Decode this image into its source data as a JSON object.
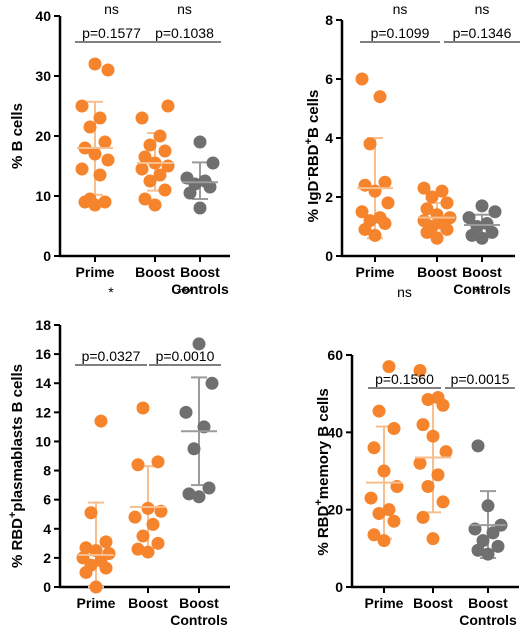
{
  "colors": {
    "prime": "#F5842C",
    "boost": "#F5842C",
    "controls": "#6F6F6F",
    "prime_bar": "#F8BE8E",
    "boost_bar": "#F8BE8E",
    "controls_bar": "#9B9B9B",
    "axis": "#000000"
  },
  "chart_data": [
    {
      "type": "scatter",
      "ylabel": "% B cells",
      "ylim": [
        0,
        40
      ],
      "yticks": [
        "0",
        "10",
        "20",
        "30",
        "40"
      ],
      "categories": [
        "Prime",
        "Boost",
        "Boost Controls"
      ],
      "series": [
        {
          "values": [
            8.5,
            9,
            9,
            9.5,
            13.5,
            14.5,
            16,
            17,
            18,
            19,
            21.5,
            23,
            25,
            31,
            32
          ],
          "mean": 18,
          "sd_low": 10.2,
          "sd_high": 25.7
        },
        {
          "values": [
            8.5,
            9.5,
            11,
            12.5,
            13.5,
            14.5,
            15,
            15.5,
            16.5,
            17.5,
            18.5,
            20,
            23,
            25
          ],
          "mean": 15.5,
          "sd_low": 10.9,
          "sd_high": 20.5
        },
        {
          "values": [
            8,
            10.5,
            11.5,
            12,
            12.5,
            13,
            15.5,
            19
          ],
          "mean": 12.3,
          "sd_low": 9.5,
          "sd_high": 15.6
        }
      ],
      "comparisons": [
        {
          "sig": "ns",
          "p": "p=0.1577"
        },
        {
          "sig": "ns",
          "p": "p=0.1038"
        }
      ]
    },
    {
      "type": "scatter",
      "ylabel_parts": [
        "% IgD",
        "-",
        "RBD",
        "+",
        "B cells"
      ],
      "ylim": [
        0,
        8
      ],
      "yticks": [
        "0",
        "2",
        "4",
        "6",
        "8"
      ],
      "categories": [
        "Prime",
        "Boost",
        "Boost Controls"
      ],
      "series": [
        {
          "values": [
            0.7,
            0.9,
            1.1,
            1.2,
            1.3,
            1.5,
            1.8,
            2.2,
            2.4,
            2.5,
            3.8,
            5.4,
            6.0
          ],
          "mean": 2.3,
          "sd_low": 0.6,
          "sd_high": 4.0
        },
        {
          "values": [
            0.6,
            0.8,
            0.9,
            1.0,
            1.1,
            1.2,
            1.3,
            1.4,
            1.6,
            1.8,
            2.0,
            2.2,
            2.3
          ],
          "mean": 1.3,
          "sd_low": 0.8,
          "sd_high": 1.8
        },
        {
          "values": [
            0.6,
            0.7,
            0.8,
            1.0,
            1.1,
            1.3,
            1.5,
            1.7
          ],
          "mean": 1.05,
          "sd_low": 0.7,
          "sd_high": 1.4
        }
      ],
      "comparisons": [
        {
          "sig": "ns",
          "p": "p=0.1099"
        },
        {
          "sig": "ns",
          "p": "p=0.1346"
        }
      ]
    },
    {
      "type": "scatter",
      "ylabel_parts": [
        "% RBD",
        "+",
        "plasmablasts B cells"
      ],
      "ylim": [
        0,
        18
      ],
      "yticks": [
        "0",
        "2",
        "4",
        "6",
        "8",
        "10",
        "12",
        "14",
        "16",
        "18"
      ],
      "categories": [
        "Prime",
        "Boost",
        "Boost Controls"
      ],
      "series": [
        {
          "values": [
            0,
            1.0,
            1.3,
            1.5,
            1.8,
            2.0,
            2.3,
            2.5,
            2.7,
            3.1,
            5.1,
            11.4
          ],
          "mean": 2.2,
          "sd_low": 0,
          "sd_high": 5.8
        },
        {
          "values": [
            2.4,
            2.6,
            3.0,
            3.5,
            4.3,
            4.8,
            5.2,
            5.4,
            8.4,
            8.6,
            12.3
          ],
          "mean": 5.5,
          "sd_low": 2.7,
          "sd_high": 8.3
        },
        {
          "values": [
            6.2,
            6.4,
            6.8,
            9.5,
            11.0,
            12.0,
            14.0,
            16.7
          ],
          "mean": 10.7,
          "sd_low": 7.0,
          "sd_high": 14.4
        }
      ],
      "comparisons": [
        {
          "sig": "*",
          "p": "p=0.0327"
        },
        {
          "sig": "***",
          "p": "p=0.0010"
        }
      ]
    },
    {
      "type": "scatter",
      "ylabel_parts": [
        "% RBD",
        "+",
        "memory B cells"
      ],
      "ylim": [
        0,
        60
      ],
      "yticks": [
        "0",
        "20",
        "40",
        "60"
      ],
      "categories": [
        "Prime",
        "Boost",
        "Boost Controls"
      ],
      "series": [
        {
          "values": [
            12,
            13.5,
            17,
            19,
            20,
            23,
            26,
            30,
            36,
            41,
            45.5,
            57
          ],
          "mean": 27,
          "sd_low": 12.5,
          "sd_high": 41.5
        },
        {
          "values": [
            12.5,
            18,
            22,
            26,
            29,
            32,
            35,
            39,
            42,
            47,
            48.5,
            49,
            56
          ],
          "mean": 33.5,
          "sd_low": 19.3,
          "sd_high": 47.7
        },
        {
          "values": [
            8.5,
            9.5,
            10.5,
            12,
            14,
            15,
            16,
            21,
            36.5
          ],
          "mean": 16,
          "sd_low": 7.5,
          "sd_high": 24.8
        }
      ],
      "comparisons": [
        {
          "sig": "ns",
          "p": "p=0.1560"
        },
        {
          "sig": "**",
          "p": "p=0.0015"
        }
      ]
    }
  ]
}
